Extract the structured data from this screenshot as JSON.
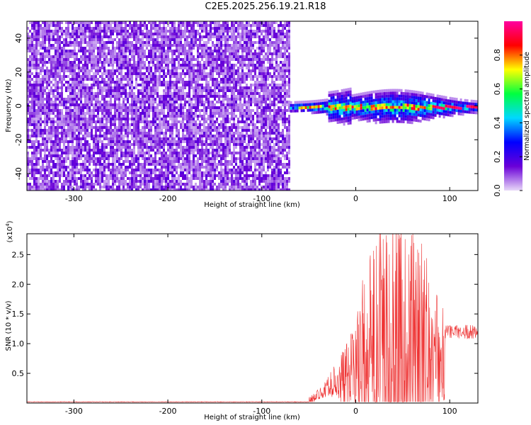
{
  "title": "C2E5.2025.256.19.21.R18",
  "chart_data": [
    {
      "type": "heatmap",
      "xlabel": "Height of straight line (km)",
      "ylabel": "Frequency (Hz)",
      "xlim": [
        -350,
        130
      ],
      "ylim": [
        -50,
        50
      ],
      "xticks": [
        -300,
        -200,
        -100,
        0,
        100
      ],
      "yticks": [
        -40,
        -20,
        0,
        20,
        40
      ],
      "colorbar": {
        "label": "Normalized spectral amplitude",
        "range": [
          0,
          1
        ],
        "ticks": [
          "0.0",
          "0.2",
          "0.4",
          "0.6",
          "0.8"
        ],
        "stops": [
          "#e8d8f8",
          "#6a00d8",
          "#0000ff",
          "#00d8ff",
          "#00ff40",
          "#ffff00",
          "#ff0000",
          "#ff00a0"
        ]
      },
      "noise_region_x": [
        -350,
        -70
      ],
      "signal_region_x": [
        -70,
        130
      ],
      "signal_peak_frequency": 0
    },
    {
      "type": "line",
      "xlabel": "Height of straight line (km)",
      "ylabel": "SNR (10 * v/v)",
      "y_multiplier": "(x10",
      "y_multiplier_exp": "4",
      "y_multiplier_close": ")",
      "xlim": [
        -350,
        130
      ],
      "ylim": [
        0,
        2.85
      ],
      "xticks": [
        -300,
        -200,
        -100,
        0,
        100
      ],
      "yticks": [
        "0.5",
        "1.0",
        "1.5",
        "2.0",
        "2.5"
      ],
      "color": "#ee3333",
      "baseline": 0.02,
      "signal_onset_x": -50,
      "peak": {
        "x": 45,
        "y": 2.85
      },
      "end_level": 1.2
    }
  ]
}
